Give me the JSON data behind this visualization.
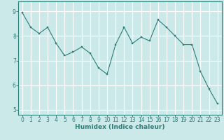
{
  "x": [
    0,
    1,
    2,
    3,
    4,
    5,
    6,
    7,
    8,
    9,
    10,
    11,
    12,
    13,
    14,
    15,
    16,
    17,
    18,
    19,
    20,
    21,
    22,
    23
  ],
  "y": [
    8.95,
    8.35,
    8.1,
    8.35,
    7.7,
    7.2,
    7.35,
    7.55,
    7.3,
    6.7,
    6.45,
    7.65,
    8.35,
    7.7,
    7.95,
    7.8,
    8.65,
    8.35,
    8.0,
    7.65,
    7.65,
    6.55,
    5.85,
    5.25
  ],
  "bg_color": "#cce9ea",
  "line_color": "#2d7d78",
  "marker_color": "#2d7d78",
  "grid_color": "#ffffff",
  "axis_color": "#2d7d78",
  "xlabel": "Humidex (Indice chaleur)",
  "ylim": [
    4.8,
    9.4
  ],
  "xlim": [
    -0.5,
    23.5
  ],
  "yticks": [
    5,
    6,
    7,
    8,
    9
  ],
  "xticks": [
    0,
    1,
    2,
    3,
    4,
    5,
    6,
    7,
    8,
    9,
    10,
    11,
    12,
    13,
    14,
    15,
    16,
    17,
    18,
    19,
    20,
    21,
    22,
    23
  ],
  "tick_color": "#2d7d78",
  "label_fontsize": 6.5,
  "tick_fontsize": 5.5
}
